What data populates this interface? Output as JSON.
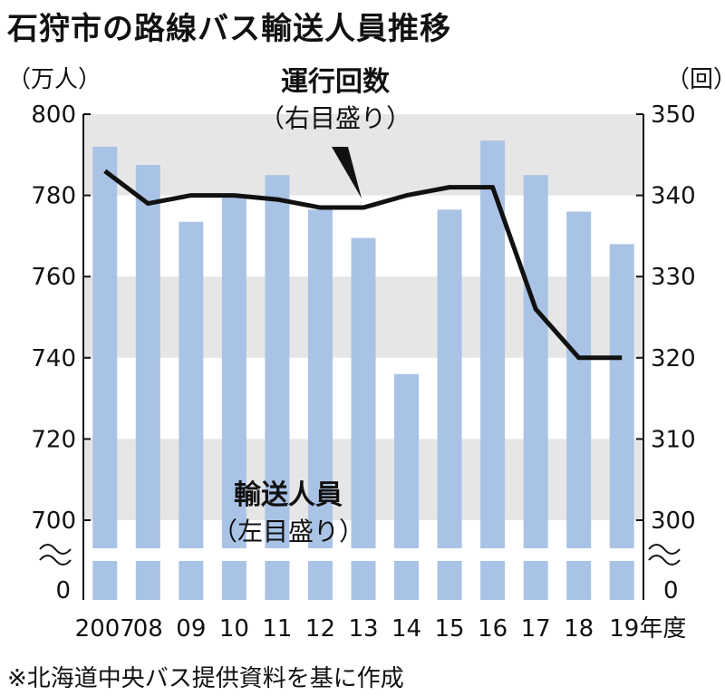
{
  "title": "石狩市の路線バス輸送人員推移",
  "footnote": "※北海道中央バス提供資料を基に作成",
  "chart_data": {
    "type": "bar",
    "categories": [
      "2007",
      "08",
      "09",
      "10",
      "11",
      "12",
      "13",
      "14",
      "15",
      "16",
      "17",
      "18",
      "19"
    ],
    "x_suffix": "年度",
    "left_axis": {
      "unit": "（万人）",
      "ticks": [
        "800",
        "780",
        "760",
        "740",
        "720",
        "700",
        "0"
      ],
      "range": [
        700,
        800
      ],
      "break": true
    },
    "right_axis": {
      "unit": "（回）",
      "ticks": [
        "350",
        "340",
        "330",
        "320",
        "310",
        "300",
        "0"
      ],
      "range": [
        300,
        350
      ],
      "break": true
    },
    "series": [
      {
        "name": "輸送人員",
        "axis_note": "（左目盛り）",
        "type": "bar",
        "color": "#a9c3e6",
        "values": [
          792,
          787.5,
          773.5,
          780,
          785,
          776.5,
          769.5,
          736,
          776.5,
          793.5,
          785,
          776,
          768
        ]
      },
      {
        "name": "運行回数",
        "axis_note": "（右目盛り）",
        "type": "line",
        "color": "#111111",
        "values": [
          343,
          339,
          340,
          340,
          339.5,
          338.5,
          338.5,
          340,
          341,
          341,
          326,
          320,
          320
        ]
      }
    ],
    "grid": "alternating horizontal bands",
    "band_color": "#e6e6e6"
  }
}
